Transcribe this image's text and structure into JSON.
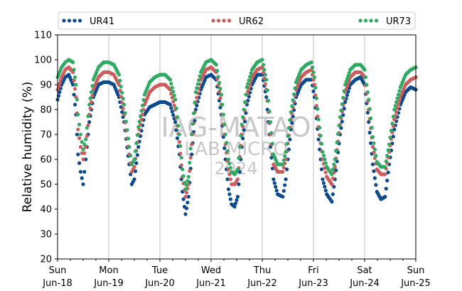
{
  "chart_data": {
    "type": "scatter",
    "title": "",
    "xlabel": "",
    "ylabel": "Relative humidity (%)",
    "ylim": [
      20,
      110
    ],
    "yticks": [
      20,
      30,
      40,
      50,
      60,
      70,
      80,
      90,
      100,
      110
    ],
    "xlim": [
      "2024-06-18",
      "2024-06-25"
    ],
    "xtick_labels": [
      {
        "day": "Sun",
        "date": "Jun-18"
      },
      {
        "day": "Mon",
        "date": "Jun-19"
      },
      {
        "day": "Tue",
        "date": "Jun-20"
      },
      {
        "day": "Wed",
        "date": "Jun-21"
      },
      {
        "day": "Thu",
        "date": "Jun-22"
      },
      {
        "day": "Fri",
        "date": "Jun-23"
      },
      {
        "day": "Sat",
        "date": "Jun-24"
      },
      {
        "day": "Sun",
        "date": "Jun-25"
      }
    ],
    "grid": "vertical-major",
    "legend_position": "top",
    "watermark": [
      "IAG-MATAO",
      "LAB MICRO",
      "2024"
    ],
    "series": [
      {
        "name": "UR41",
        "color": "#0b4a8c",
        "points": [
          [
            0.0,
            84
          ],
          [
            0.08,
            90
          ],
          [
            0.15,
            93
          ],
          [
            0.22,
            94
          ],
          [
            0.3,
            90
          ],
          [
            0.36,
            78
          ],
          [
            0.4,
            62
          ],
          [
            0.45,
            55
          ],
          [
            0.5,
            50
          ],
          [
            0.55,
            60
          ],
          [
            0.62,
            75
          ],
          [
            0.7,
            85
          ],
          [
            0.8,
            90
          ],
          [
            0.9,
            91
          ],
          [
            1.0,
            91
          ],
          [
            1.1,
            90
          ],
          [
            1.2,
            85
          ],
          [
            1.3,
            75
          ],
          [
            1.4,
            58
          ],
          [
            1.45,
            50
          ],
          [
            1.5,
            52
          ],
          [
            1.58,
            65
          ],
          [
            1.7,
            78
          ],
          [
            1.8,
            81
          ],
          [
            1.9,
            82
          ],
          [
            2.0,
            83
          ],
          [
            2.1,
            83
          ],
          [
            2.2,
            82
          ],
          [
            2.3,
            75
          ],
          [
            2.38,
            62
          ],
          [
            2.44,
            47
          ],
          [
            2.5,
            38
          ],
          [
            2.56,
            45
          ],
          [
            2.62,
            62
          ],
          [
            2.7,
            80
          ],
          [
            2.8,
            88
          ],
          [
            2.9,
            93
          ],
          [
            3.0,
            94
          ],
          [
            3.1,
            92
          ],
          [
            3.2,
            78
          ],
          [
            3.28,
            60
          ],
          [
            3.34,
            48
          ],
          [
            3.4,
            42
          ],
          [
            3.46,
            41
          ],
          [
            3.52,
            45
          ],
          [
            3.6,
            65
          ],
          [
            3.7,
            82
          ],
          [
            3.8,
            90
          ],
          [
            3.9,
            94
          ],
          [
            4.0,
            94
          ],
          [
            4.08,
            85
          ],
          [
            4.16,
            65
          ],
          [
            4.22,
            52
          ],
          [
            4.3,
            46
          ],
          [
            4.4,
            45
          ],
          [
            4.46,
            52
          ],
          [
            4.56,
            72
          ],
          [
            4.66,
            85
          ],
          [
            4.76,
            90
          ],
          [
            4.86,
            92
          ],
          [
            4.96,
            92
          ],
          [
            5.02,
            85
          ],
          [
            5.1,
            68
          ],
          [
            5.18,
            52
          ],
          [
            5.26,
            46
          ],
          [
            5.36,
            43
          ],
          [
            5.42,
            52
          ],
          [
            5.52,
            70
          ],
          [
            5.62,
            83
          ],
          [
            5.72,
            90
          ],
          [
            5.82,
            92
          ],
          [
            5.92,
            93
          ],
          [
            6.0,
            90
          ],
          [
            6.08,
            75
          ],
          [
            6.16,
            58
          ],
          [
            6.24,
            47
          ],
          [
            6.32,
            44
          ],
          [
            6.4,
            45
          ],
          [
            6.48,
            58
          ],
          [
            6.58,
            72
          ],
          [
            6.7,
            82
          ],
          [
            6.8,
            87
          ],
          [
            6.9,
            89
          ],
          [
            7.0,
            88
          ]
        ]
      },
      {
        "name": "UR62",
        "color": "#cd5c5c",
        "points": [
          [
            0.0,
            88
          ],
          [
            0.08,
            93
          ],
          [
            0.15,
            96
          ],
          [
            0.22,
            97
          ],
          [
            0.3,
            95
          ],
          [
            0.36,
            85
          ],
          [
            0.4,
            72
          ],
          [
            0.45,
            65
          ],
          [
            0.5,
            60
          ],
          [
            0.55,
            65
          ],
          [
            0.62,
            78
          ],
          [
            0.7,
            88
          ],
          [
            0.8,
            93
          ],
          [
            0.9,
            95
          ],
          [
            1.0,
            95
          ],
          [
            1.1,
            94
          ],
          [
            1.2,
            90
          ],
          [
            1.3,
            78
          ],
          [
            1.4,
            62
          ],
          [
            1.45,
            55
          ],
          [
            1.5,
            57
          ],
          [
            1.58,
            70
          ],
          [
            1.7,
            82
          ],
          [
            1.8,
            87
          ],
          [
            1.9,
            89
          ],
          [
            2.0,
            90
          ],
          [
            2.1,
            90
          ],
          [
            2.2,
            88
          ],
          [
            2.3,
            80
          ],
          [
            2.38,
            67
          ],
          [
            2.44,
            53
          ],
          [
            2.5,
            45
          ],
          [
            2.56,
            50
          ],
          [
            2.62,
            66
          ],
          [
            2.7,
            83
          ],
          [
            2.8,
            92
          ],
          [
            2.9,
            96
          ],
          [
            3.0,
            97
          ],
          [
            3.1,
            95
          ],
          [
            3.2,
            82
          ],
          [
            3.28,
            66
          ],
          [
            3.34,
            56
          ],
          [
            3.4,
            50
          ],
          [
            3.46,
            50
          ],
          [
            3.52,
            52
          ],
          [
            3.6,
            70
          ],
          [
            3.7,
            86
          ],
          [
            3.8,
            93
          ],
          [
            3.9,
            96
          ],
          [
            4.0,
            97
          ],
          [
            4.08,
            88
          ],
          [
            4.16,
            70
          ],
          [
            4.22,
            58
          ],
          [
            4.3,
            55
          ],
          [
            4.4,
            55
          ],
          [
            4.46,
            60
          ],
          [
            4.56,
            76
          ],
          [
            4.66,
            88
          ],
          [
            4.76,
            93
          ],
          [
            4.86,
            95
          ],
          [
            4.96,
            96
          ],
          [
            5.02,
            90
          ],
          [
            5.1,
            73
          ],
          [
            5.18,
            60
          ],
          [
            5.26,
            53
          ],
          [
            5.36,
            50
          ],
          [
            5.42,
            57
          ],
          [
            5.52,
            74
          ],
          [
            5.62,
            87
          ],
          [
            5.72,
            93
          ],
          [
            5.82,
            95
          ],
          [
            5.92,
            95
          ],
          [
            6.0,
            93
          ],
          [
            6.08,
            80
          ],
          [
            6.16,
            65
          ],
          [
            6.24,
            56
          ],
          [
            6.32,
            54
          ],
          [
            6.4,
            54
          ],
          [
            6.48,
            63
          ],
          [
            6.58,
            76
          ],
          [
            6.7,
            85
          ],
          [
            6.8,
            90
          ],
          [
            6.9,
            92
          ],
          [
            7.0,
            93
          ]
        ]
      },
      {
        "name": "UR73",
        "color": "#2eaa62",
        "points": [
          [
            0.0,
            93
          ],
          [
            0.08,
            97
          ],
          [
            0.15,
            99
          ],
          [
            0.22,
            100
          ],
          [
            0.3,
            99
          ],
          [
            0.36,
            90
          ],
          [
            0.4,
            78
          ],
          [
            0.45,
            70
          ],
          [
            0.5,
            64
          ],
          [
            0.55,
            68
          ],
          [
            0.62,
            82
          ],
          [
            0.7,
            92
          ],
          [
            0.8,
            97
          ],
          [
            0.9,
            99
          ],
          [
            1.0,
            99
          ],
          [
            1.1,
            98
          ],
          [
            1.2,
            94
          ],
          [
            1.3,
            82
          ],
          [
            1.4,
            65
          ],
          [
            1.45,
            58
          ],
          [
            1.5,
            60
          ],
          [
            1.58,
            73
          ],
          [
            1.7,
            86
          ],
          [
            1.8,
            91
          ],
          [
            1.9,
            93
          ],
          [
            2.0,
            94
          ],
          [
            2.1,
            94
          ],
          [
            2.2,
            92
          ],
          [
            2.3,
            84
          ],
          [
            2.38,
            70
          ],
          [
            2.44,
            56
          ],
          [
            2.5,
            48
          ],
          [
            2.56,
            53
          ],
          [
            2.62,
            70
          ],
          [
            2.7,
            87
          ],
          [
            2.8,
            95
          ],
          [
            2.9,
            99
          ],
          [
            3.0,
            100
          ],
          [
            3.1,
            98
          ],
          [
            3.2,
            86
          ],
          [
            3.28,
            70
          ],
          [
            3.34,
            60
          ],
          [
            3.4,
            55
          ],
          [
            3.46,
            54
          ],
          [
            3.52,
            56
          ],
          [
            3.6,
            74
          ],
          [
            3.7,
            89
          ],
          [
            3.8,
            96
          ],
          [
            3.9,
            99
          ],
          [
            4.0,
            100
          ],
          [
            4.08,
            92
          ],
          [
            4.16,
            75
          ],
          [
            4.22,
            62
          ],
          [
            4.3,
            58
          ],
          [
            4.4,
            58
          ],
          [
            4.46,
            63
          ],
          [
            4.56,
            79
          ],
          [
            4.66,
            91
          ],
          [
            4.76,
            96
          ],
          [
            4.86,
            98
          ],
          [
            4.96,
            99
          ],
          [
            5.02,
            93
          ],
          [
            5.1,
            76
          ],
          [
            5.18,
            63
          ],
          [
            5.26,
            57
          ],
          [
            5.36,
            54
          ],
          [
            5.42,
            60
          ],
          [
            5.52,
            77
          ],
          [
            5.62,
            90
          ],
          [
            5.72,
            96
          ],
          [
            5.82,
            98
          ],
          [
            5.92,
            98
          ],
          [
            6.0,
            96
          ],
          [
            6.08,
            84
          ],
          [
            6.16,
            69
          ],
          [
            6.24,
            59
          ],
          [
            6.32,
            57
          ],
          [
            6.4,
            57
          ],
          [
            6.48,
            66
          ],
          [
            6.58,
            80
          ],
          [
            6.7,
            89
          ],
          [
            6.8,
            94
          ],
          [
            6.9,
            96
          ],
          [
            7.0,
            97
          ]
        ]
      }
    ]
  }
}
